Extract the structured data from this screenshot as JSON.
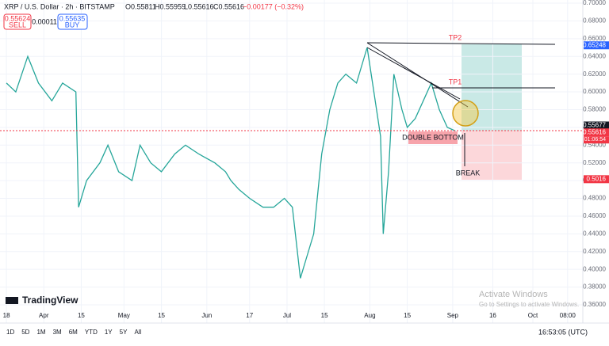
{
  "header": {
    "symbol": "XRP / U.S. Dollar · 2h · BITSTAMP",
    "ohlc": [
      "O0.55811",
      "H0.55959",
      "L0.55616",
      "C0.55616",
      "−0.00177 (−0.32%)"
    ],
    "sell_price": "0.55624",
    "sell": "SELL",
    "spread": "0.00011",
    "buy_price": "0.55635",
    "buy": "BUY"
  },
  "chart_data": {
    "type": "line",
    "color": "#26a69a",
    "x": [
      0,
      3.5,
      8,
      12,
      17,
      21,
      26,
      27,
      30,
      35,
      38,
      42,
      47,
      50,
      54,
      58,
      63,
      67,
      72,
      78,
      82,
      84,
      87,
      91,
      96,
      100,
      104,
      107,
      110,
      112,
      115,
      118,
      121,
      124,
      127,
      131,
      135,
      137,
      140,
      141,
      143,
      145,
      148,
      150,
      153,
      156,
      159,
      162,
      165,
      168
    ],
    "values": [
      0.61,
      0.6,
      0.64,
      0.61,
      0.59,
      0.61,
      0.6,
      0.47,
      0.5,
      0.52,
      0.54,
      0.51,
      0.5,
      0.54,
      0.52,
      0.51,
      0.53,
      0.54,
      0.53,
      0.52,
      0.51,
      0.5,
      0.49,
      0.48,
      0.47,
      0.47,
      0.48,
      0.47,
      0.39,
      0.41,
      0.44,
      0.53,
      0.58,
      0.61,
      0.62,
      0.61,
      0.65,
      0.61,
      0.55,
      0.44,
      0.51,
      0.62,
      0.58,
      0.56,
      0.57,
      0.59,
      0.61,
      0.58,
      0.56,
      0.556
    ],
    "xlim": [
      -2.4,
      215.7
    ],
    "ylim": [
      0.36,
      0.7
    ],
    "xticks": [
      {
        "value": 0,
        "label": "18"
      },
      {
        "value": 14,
        "label": "Apr"
      },
      {
        "value": 28,
        "label": "15"
      },
      {
        "value": 44,
        "label": "May"
      },
      {
        "value": 58,
        "label": "15"
      },
      {
        "value": 75,
        "label": "Jun"
      },
      {
        "value": 91,
        "label": "17"
      },
      {
        "value": 105,
        "label": "Jul"
      },
      {
        "value": 119,
        "label": "15"
      },
      {
        "value": 136,
        "label": "Aug"
      },
      {
        "value": 150,
        "label": "15"
      },
      {
        "value": 167,
        "label": "Sep"
      },
      {
        "value": 182,
        "label": "16"
      },
      {
        "value": 197,
        "label": "Oct"
      },
      {
        "value": 210,
        "label": "08:00"
      }
    ],
    "yticks": [
      {
        "value": 0.36,
        "label": "0.36000"
      },
      {
        "value": 0.38,
        "label": "0.38000"
      },
      {
        "value": 0.4,
        "label": "0.40000"
      },
      {
        "value": 0.42,
        "label": "0.42000"
      },
      {
        "value": 0.44,
        "label": "0.44000"
      },
      {
        "value": 0.46,
        "label": "0.46000"
      },
      {
        "value": 0.48,
        "label": "0.48000"
      },
      {
        "value": 0.5,
        "label": "0.50000"
      },
      {
        "value": 0.52,
        "label": "0.52000"
      },
      {
        "value": 0.54,
        "label": "0.54000"
      },
      {
        "value": 0.56,
        "label": "0.56000"
      },
      {
        "value": 0.58,
        "label": "0.58000"
      },
      {
        "value": 0.6,
        "label": "0.60000"
      },
      {
        "value": 0.62,
        "label": "0.62000"
      },
      {
        "value": 0.64,
        "label": "0.64000"
      },
      {
        "value": 0.66,
        "label": "0.66000"
      },
      {
        "value": 0.68,
        "label": "0.68000"
      },
      {
        "value": 0.7,
        "label": "0.70000"
      }
    ],
    "axis_markers": [
      {
        "value": 0.65248,
        "color": "#2962ff"
      },
      {
        "value": 0.55677,
        "color": "#131722"
      },
      {
        "value": 0.55616,
        "color": "#f23645"
      },
      {
        "value": 0.5016,
        "color": "#f23645"
      }
    ],
    "countdown": "01:06:54",
    "annotations": [
      "TP2",
      "TP1",
      "DOUBLE BOTTOM",
      "BREAK"
    ]
  },
  "logo": "TradingView",
  "watermark": [
    "Activate Windows",
    "Go to Settings to activate Windows."
  ],
  "toolbar": {
    "ranges": [
      "1D",
      "5D",
      "1M",
      "3M",
      "6M",
      "YTD",
      "1Y",
      "5Y",
      "All"
    ],
    "clock": "16:53:05 (UTC)"
  }
}
